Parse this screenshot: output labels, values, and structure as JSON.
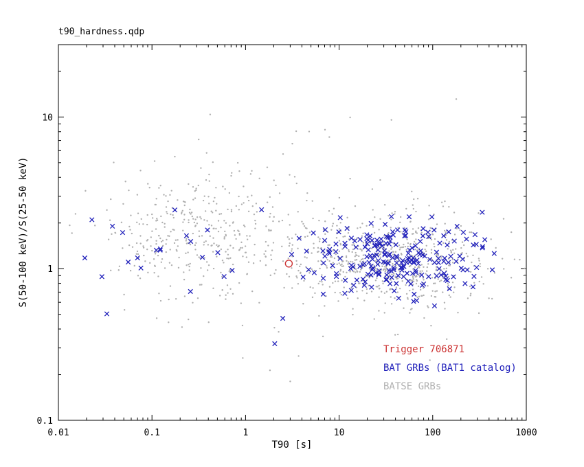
{
  "window": {
    "background": "#ffffff"
  },
  "chart_data": {
    "type": "scatter",
    "title": "t90_hardness.qdp",
    "xlabel": "T90 [s]",
    "ylabel": "S(50-100 keV)/S(25-50 keV)",
    "xscale": "log",
    "yscale": "log",
    "xlim": [
      0.01,
      1000
    ],
    "ylim": [
      0.1,
      30
    ],
    "grid": false,
    "frame_color": "#000000",
    "x_ticks": [
      {
        "value": 0.01,
        "label": "0.01"
      },
      {
        "value": 0.1,
        "label": "0.1"
      },
      {
        "value": 1,
        "label": "1"
      },
      {
        "value": 10,
        "label": "10"
      },
      {
        "value": 100,
        "label": "100"
      },
      {
        "value": 1000,
        "label": "1000"
      }
    ],
    "y_ticks": [
      {
        "value": 0.1,
        "label": "0.1"
      },
      {
        "value": 1,
        "label": "1"
      },
      {
        "value": 10,
        "label": "10"
      }
    ],
    "legend": {
      "position": "lower-right",
      "entries": [
        {
          "label": "Trigger 706871",
          "color": "#cc3333",
          "series": "trigger"
        },
        {
          "label": "BAT GRBs (BAT1 catalog)",
          "color": "#2222bb",
          "series": "bat"
        },
        {
          "label": "BATSE GRBs",
          "color": "#b0b0b0",
          "series": "batse"
        }
      ]
    },
    "series": [
      {
        "id": "batse",
        "name": "BATSE GRBs",
        "marker": "dot",
        "color": "#b0b0b0",
        "seed": 7,
        "clusters": [
          {
            "comment": "long-burst cloud",
            "count": 700,
            "log10_mean": [
              1.55,
              0.07
            ],
            "log10_sigma": [
              0.5,
              0.16
            ]
          },
          {
            "comment": "short-burst cloud",
            "count": 420,
            "log10_mean": [
              -0.45,
              0.23
            ],
            "log10_sigma": [
              0.55,
              0.2
            ]
          },
          {
            "comment": "high-hardness outliers",
            "count": 14,
            "log10_mean": [
              0.3,
              0.9
            ],
            "log10_sigma": [
              0.8,
              0.3
            ]
          },
          {
            "comment": "low-hardness outliers",
            "count": 16,
            "log10_mean": [
              0.9,
              -0.45
            ],
            "log10_sigma": [
              0.9,
              0.12
            ]
          }
        ]
      },
      {
        "id": "bat",
        "name": "BAT GRBs (BAT1 catalog)",
        "marker": "x",
        "color": "#2222bb",
        "seed": 12,
        "clusters": [
          {
            "comment": "long bursts",
            "count": 218,
            "log10_mean": [
              1.6,
              0.07
            ],
            "log10_sigma": [
              0.45,
              0.115
            ]
          },
          {
            "comment": "short bursts",
            "count": 22,
            "log10_mean": [
              -0.8,
              0.12
            ],
            "log10_sigma": [
              0.42,
              0.17
            ]
          }
        ],
        "extra_points": [
          [
            2.5,
            0.47
          ],
          [
            2.05,
            0.32
          ]
        ]
      },
      {
        "id": "trigger",
        "name": "Trigger 706871",
        "marker": "circle-open",
        "color": "#cc3333",
        "points": [
          [
            2.9,
            1.08
          ]
        ]
      }
    ]
  }
}
